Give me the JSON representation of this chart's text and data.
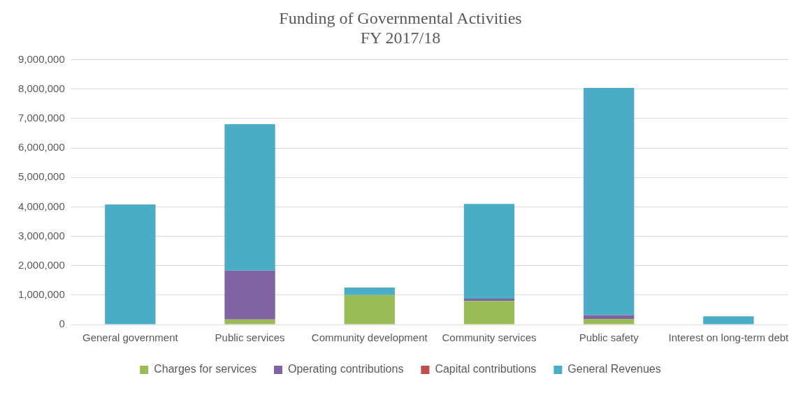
{
  "chart_data": {
    "type": "bar",
    "title": "Funding of Governmental Activities",
    "subtitle": "FY 2017/18",
    "stacked": true,
    "categories": [
      "General government",
      "Public services",
      "Community development",
      "Community services",
      "Public safety",
      "Interest on long-term debt"
    ],
    "series": [
      {
        "name": "Charges for services",
        "color": "#9bbb59",
        "values": [
          0,
          170000,
          1000000,
          800000,
          190000,
          0
        ]
      },
      {
        "name": "Operating contributions",
        "color": "#8064a2",
        "values": [
          0,
          1660000,
          0,
          80000,
          130000,
          0
        ]
      },
      {
        "name": "Capital contributions",
        "color": "#c0504d",
        "values": [
          0,
          0,
          0,
          0,
          0,
          0
        ]
      },
      {
        "name": "General Revenues",
        "color": "#4bacc6",
        "values": [
          4080000,
          4980000,
          260000,
          3220000,
          7720000,
          280000
        ]
      }
    ],
    "ylim": [
      0,
      9000000
    ],
    "yticks": [
      {
        "value": 0,
        "label": "0"
      },
      {
        "value": 1000000,
        "label": "1,000,000"
      },
      {
        "value": 2000000,
        "label": "2,000,000"
      },
      {
        "value": 3000000,
        "label": "3,000,000"
      },
      {
        "value": 4000000,
        "label": "4,000,000"
      },
      {
        "value": 5000000,
        "label": "5,000,000"
      },
      {
        "value": 6000000,
        "label": "6,000,000"
      },
      {
        "value": 7000000,
        "label": "7,000,000"
      },
      {
        "value": 8000000,
        "label": "8,000,000"
      },
      {
        "value": 9000000,
        "label": "9,000,000"
      }
    ],
    "grid": "y",
    "legend": "bottom"
  }
}
